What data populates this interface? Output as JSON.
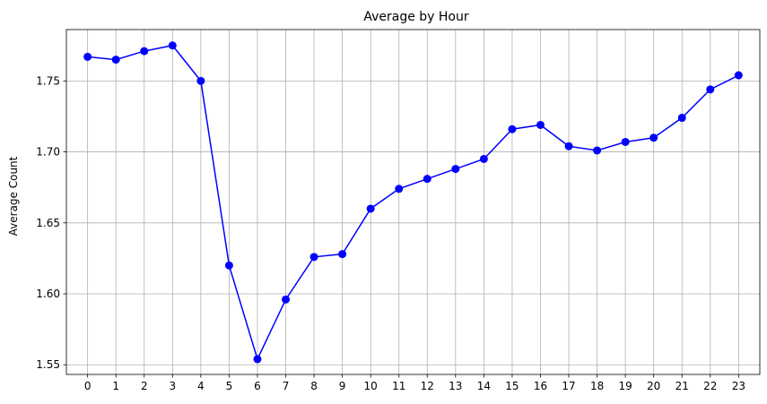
{
  "chart_data": {
    "type": "line",
    "title": "Average by Hour",
    "xlabel": "",
    "ylabel": "Average Count",
    "x": [
      0,
      1,
      2,
      3,
      4,
      5,
      6,
      7,
      8,
      9,
      10,
      11,
      12,
      13,
      14,
      15,
      16,
      17,
      18,
      19,
      20,
      21,
      22,
      23
    ],
    "series": [
      {
        "name": "",
        "values": [
          1.767,
          1.765,
          1.771,
          1.775,
          1.75,
          1.62,
          1.554,
          1.596,
          1.626,
          1.628,
          1.66,
          1.674,
          1.681,
          1.688,
          1.695,
          1.716,
          1.719,
          1.704,
          1.701,
          1.707,
          1.71,
          1.724,
          1.744,
          1.754
        ],
        "color": "#0000ff",
        "marker": "circle"
      }
    ],
    "xlim": [
      -0.75,
      23.75
    ],
    "ylim": [
      1.5432,
      1.7862
    ],
    "xticks": [
      "0",
      "1",
      "2",
      "3",
      "4",
      "5",
      "6",
      "7",
      "8",
      "9",
      "10",
      "11",
      "12",
      "13",
      "14",
      "15",
      "16",
      "17",
      "18",
      "19",
      "20",
      "21",
      "22",
      "23"
    ],
    "yticks": [
      1.55,
      1.6,
      1.65,
      1.7,
      1.75
    ],
    "ytick_labels": [
      "1.55",
      "1.60",
      "1.65",
      "1.70",
      "1.75"
    ],
    "grid": true,
    "grid_color": "#b0b0b0",
    "legend": false
  }
}
